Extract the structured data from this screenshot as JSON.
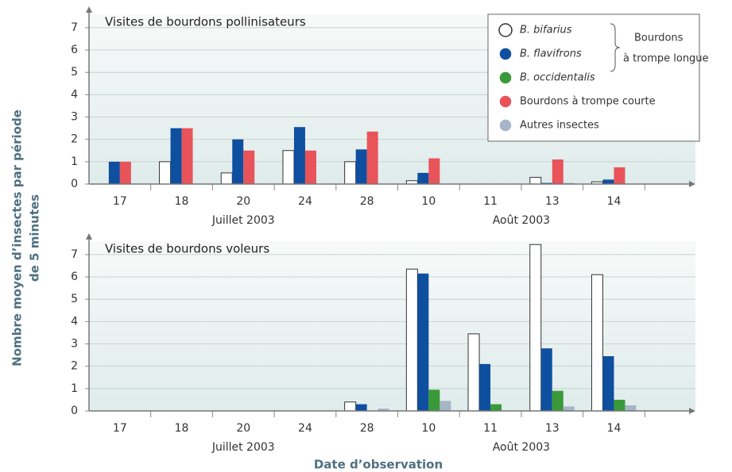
{
  "chart_data": [
    {
      "type": "bar",
      "title": "Visites de bourdons pollinisateurs",
      "categories": [
        "17",
        "18",
        "20",
        "24",
        "28",
        "10",
        "11",
        "13",
        "14"
      ],
      "group_labels": [
        "Juillet 2003",
        "Août 2003"
      ],
      "series": [
        {
          "name": "B. bifarius",
          "color": "#ffffff",
          "values": [
            0,
            1.0,
            0.5,
            1.5,
            1.0,
            0.15,
            0,
            0.3,
            0.1
          ]
        },
        {
          "name": "B. flavifrons",
          "color": "#0f4fa0",
          "values": [
            1.0,
            2.5,
            2.0,
            2.55,
            1.55,
            0.5,
            0,
            0.05,
            0.2
          ]
        },
        {
          "name": "Bourdons à trompe courte",
          "color": "#e8545a",
          "values": [
            1.0,
            2.5,
            1.5,
            1.5,
            2.35,
            1.15,
            0,
            1.1,
            0.75
          ]
        },
        {
          "name": "Autres insectes",
          "color": "#a6b5c8",
          "values": [
            0,
            0,
            0,
            0,
            0,
            0,
            0,
            0.05,
            0
          ]
        }
      ],
      "ylim": [
        0,
        7.6
      ],
      "yticks": [
        0,
        1,
        2,
        3,
        4,
        5,
        6,
        7
      ],
      "grid": true
    },
    {
      "type": "bar",
      "title": "Visites de bourdons voleurs",
      "categories": [
        "17",
        "18",
        "20",
        "24",
        "28",
        "10",
        "11",
        "13",
        "14"
      ],
      "group_labels": [
        "Juillet 2003",
        "Août 2003"
      ],
      "series": [
        {
          "name": "B. bifarius",
          "color": "#ffffff",
          "values": [
            0,
            0,
            0,
            0,
            0.4,
            6.35,
            3.45,
            7.45,
            6.1
          ]
        },
        {
          "name": "B. flavifrons",
          "color": "#0f4fa0",
          "values": [
            0,
            0,
            0,
            0,
            0.3,
            6.15,
            2.1,
            2.8,
            2.45
          ]
        },
        {
          "name": "B. occidentalis",
          "color": "#3a9a3a",
          "values": [
            0,
            0,
            0,
            0,
            0,
            0.95,
            0.3,
            0.9,
            0.5
          ]
        },
        {
          "name": "Autres insectes",
          "color": "#a6b5c8",
          "values": [
            0,
            0,
            0,
            0,
            0.1,
            0.45,
            0,
            0.2,
            0.25
          ]
        }
      ],
      "ylim": [
        0,
        7.6
      ],
      "yticks": [
        0,
        1,
        2,
        3,
        4,
        5,
        6,
        7
      ],
      "grid": true
    }
  ],
  "y_label": [
    "Nombre moyen d’insectes par période",
    "de 5 minutes"
  ],
  "x_label": "Date d’observation",
  "legend": {
    "entries": [
      {
        "name": "B. bifarius",
        "color": "#ffffff",
        "italic": true
      },
      {
        "name": "B. flavifrons",
        "color": "#0f4fa0",
        "italic": true
      },
      {
        "name": "B. occidentalis",
        "color": "#3a9a3a",
        "italic": true
      },
      {
        "name": "Bourdons à trompe courte",
        "color": "#e8545a",
        "italic": false
      },
      {
        "name": "Autres insectes",
        "color": "#a6b5c8",
        "italic": false
      }
    ],
    "bracket_label": [
      "Bourdons",
      "à trompe longue"
    ]
  }
}
